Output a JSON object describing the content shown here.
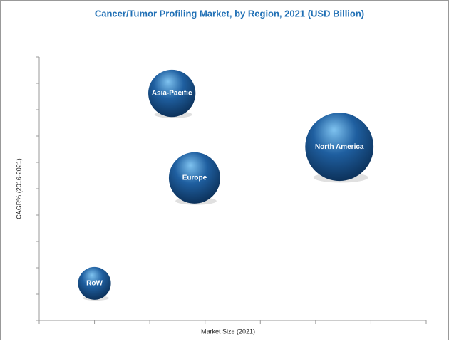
{
  "chart_data": {
    "type": "bubble",
    "title": "Cancer/Tumor Profiling Market, by Region, 2021 (USD Billion)",
    "x_label": "Market Size (2021)",
    "y_label": "CAGR% (2016-2021)",
    "labels": [
      "Asia-Pacific",
      "North America",
      "Europe",
      "RoW"
    ],
    "x": [
      2.4,
      5.43,
      2.81,
      1.0
    ],
    "y": [
      8.62,
      6.59,
      5.41,
      1.41
    ],
    "size": [
      1.1,
      2.3,
      1.3,
      0.53
    ],
    "color": "#1f5fa0",
    "xlim": [
      0,
      7
    ],
    "xticks": [
      0,
      1,
      2,
      3,
      4,
      5,
      6,
      7
    ],
    "ylim": [
      0,
      10
    ],
    "yticks": [
      0,
      1,
      2,
      3,
      4,
      5,
      6,
      7,
      8,
      9,
      10
    ],
    "grid": false
  }
}
